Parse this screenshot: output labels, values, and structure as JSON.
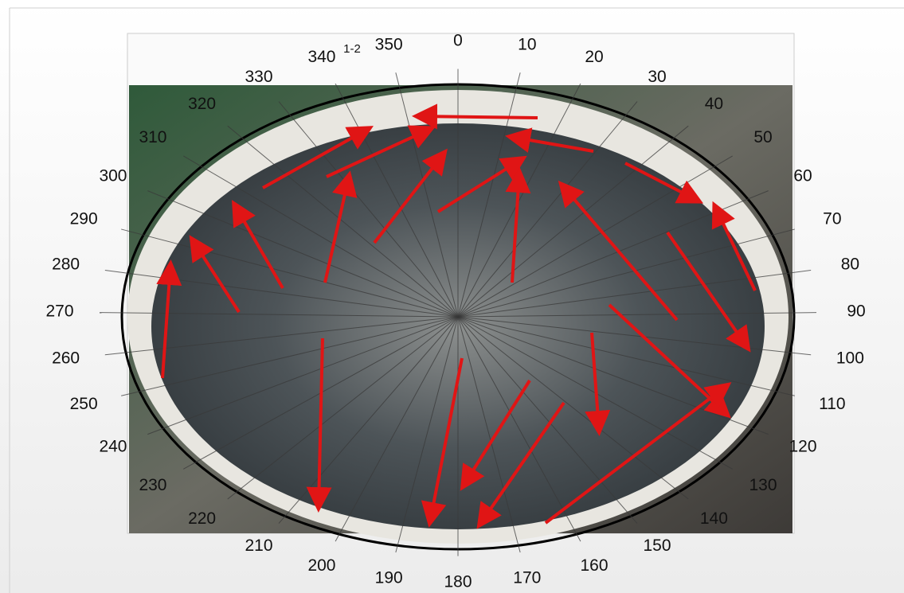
{
  "figure_label": "1-2",
  "angle_labels": [
    0,
    10,
    20,
    30,
    40,
    50,
    60,
    70,
    80,
    90,
    100,
    110,
    120,
    130,
    140,
    150,
    160,
    170,
    180,
    190,
    200,
    210,
    220,
    230,
    240,
    250,
    260,
    270,
    280,
    290,
    300,
    310,
    320,
    330,
    340,
    350
  ]
}
